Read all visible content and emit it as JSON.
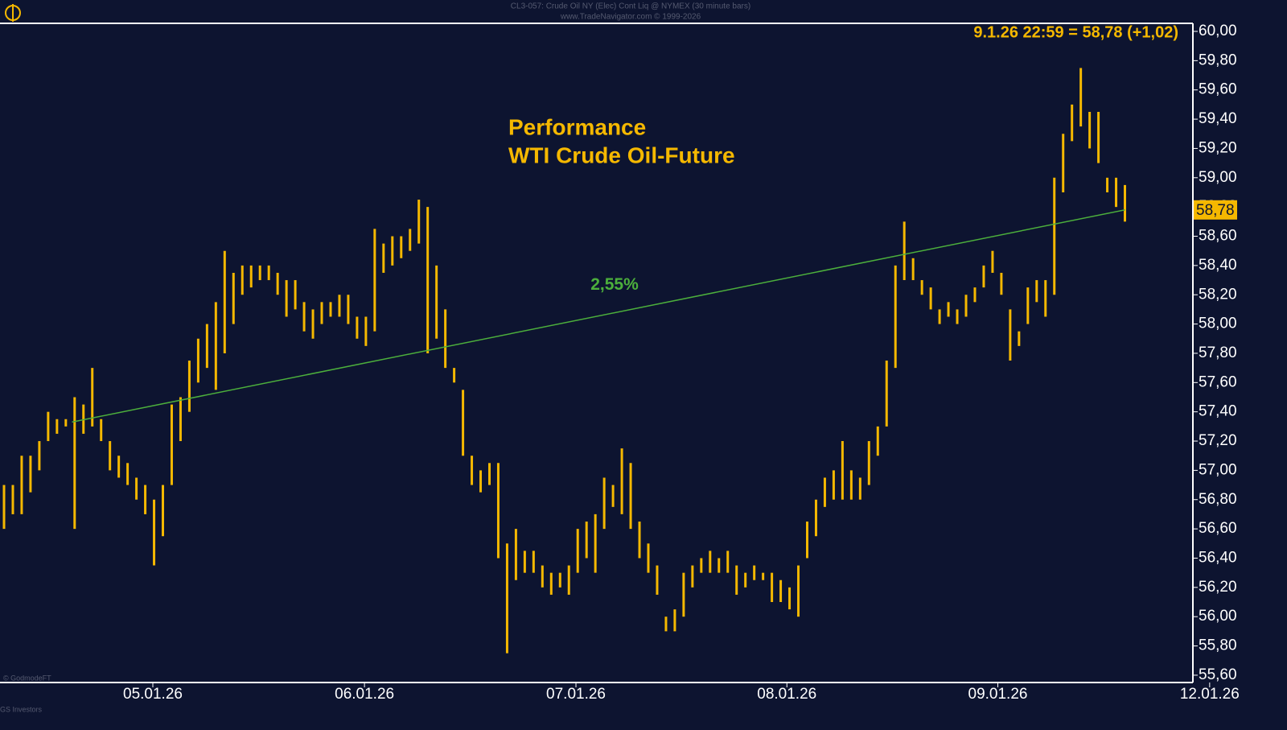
{
  "chart_data": {
    "type": "ohlc",
    "title": "CL3-057: Crude Oil NY (Elec) Cont Liq @ NYMEX (30 minute bars)",
    "subtitle": "www.TradeNavigator.com © 1999-2026",
    "annotation_title": [
      "Performance",
      "WTI Crude Oil-Future"
    ],
    "last_info": "9.1.26 22:59 = 58,78 (+1,02)",
    "last_price": {
      "value": 58.78,
      "label": "58,78"
    },
    "footer": [
      "© GodmodeFT",
      "GS Investors"
    ],
    "color": "#f5b800",
    "series": [
      {
        "high": [
          56.9,
          56.9,
          57.1,
          57.1,
          57.2,
          57.4,
          57.35,
          57.35,
          57.5,
          57.45,
          57.7,
          57.35,
          57.2,
          57.1,
          57.05,
          56.95,
          56.9,
          56.8,
          56.9,
          57.45,
          57.5,
          57.75,
          57.9,
          58.0,
          58.15,
          58.5,
          58.35,
          58.4,
          58.4,
          58.4,
          58.4,
          58.35,
          58.3,
          58.3,
          58.15,
          58.1,
          58.15,
          58.15,
          58.2,
          58.2,
          58.05,
          58.05,
          58.65,
          58.55,
          58.6,
          58.6,
          58.65,
          58.85,
          58.8,
          58.4,
          58.1,
          57.7,
          57.55,
          57.1,
          57.0,
          57.05,
          57.05,
          56.5,
          56.6,
          56.45,
          56.45,
          56.35,
          56.3,
          56.3,
          56.35,
          56.6,
          56.65,
          56.7,
          56.95,
          56.9,
          57.15,
          57.05,
          56.65,
          56.5,
          56.35,
          56.0,
          56.05,
          56.3,
          56.35,
          56.4,
          56.45,
          56.4,
          56.45,
          56.35,
          56.3,
          56.35,
          56.3,
          56.3,
          56.25,
          56.2,
          56.35,
          56.65,
          56.8,
          56.95,
          57.0,
          57.2,
          57.0,
          56.95,
          57.2,
          57.3,
          57.75,
          58.4,
          58.7,
          58.45,
          58.3,
          58.25,
          58.1,
          58.15,
          58.1,
          58.2,
          58.25,
          58.4,
          58.5,
          58.35,
          58.1,
          57.95,
          58.25,
          58.3,
          58.3,
          59.0,
          59.3,
          59.5,
          59.75,
          59.45,
          59.45,
          59.0,
          59.0,
          58.95
        ],
        "low": [
          56.6,
          56.7,
          56.7,
          56.85,
          57.0,
          57.2,
          57.25,
          57.3,
          56.6,
          57.25,
          57.3,
          57.2,
          57.0,
          56.95,
          56.9,
          56.8,
          56.7,
          56.35,
          56.55,
          56.9,
          57.2,
          57.4,
          57.6,
          57.7,
          57.55,
          57.8,
          58.0,
          58.2,
          58.25,
          58.3,
          58.3,
          58.2,
          58.05,
          58.1,
          57.95,
          57.9,
          58.0,
          58.05,
          58.05,
          58.0,
          57.9,
          57.85,
          57.95,
          58.35,
          58.4,
          58.45,
          58.5,
          58.55,
          57.8,
          57.9,
          57.7,
          57.6,
          57.1,
          56.9,
          56.85,
          56.9,
          56.4,
          55.75,
          56.25,
          56.3,
          56.3,
          56.2,
          56.15,
          56.2,
          56.15,
          56.3,
          56.4,
          56.3,
          56.6,
          56.75,
          56.7,
          56.6,
          56.4,
          56.3,
          56.15,
          55.9,
          55.9,
          56.0,
          56.2,
          56.3,
          56.3,
          56.3,
          56.3,
          56.15,
          56.2,
          56.25,
          56.25,
          56.1,
          56.1,
          56.05,
          56.0,
          56.4,
          56.55,
          56.75,
          56.8,
          56.8,
          56.8,
          56.8,
          56.9,
          57.1,
          57.3,
          57.7,
          58.3,
          58.3,
          58.2,
          58.1,
          58.0,
          58.05,
          58.0,
          58.05,
          58.15,
          58.25,
          58.35,
          58.2,
          57.75,
          57.85,
          58.0,
          58.15,
          58.05,
          58.2,
          58.9,
          59.25,
          59.35,
          59.2,
          59.1,
          58.9,
          58.8,
          58.7
        ]
      }
    ],
    "trendline": {
      "x": [
        7.7,
        127
      ],
      "y": [
        57.33,
        58.78
      ],
      "label": "2,55%",
      "color": "#4caf3c"
    },
    "xlim": [
      -0.456,
      134.7
    ],
    "xticks": [
      {
        "value": 16.86,
        "label": "05.01.26"
      },
      {
        "value": 40.84,
        "label": "06.01.26"
      },
      {
        "value": 64.8,
        "label": "07.01.26"
      },
      {
        "value": 88.7,
        "label": "08.01.26"
      },
      {
        "value": 112.6,
        "label": "09.01.26"
      },
      {
        "value": 136.6,
        "label": "12.01.26"
      }
    ],
    "ylim": [
      55.55,
      60.055
    ],
    "yticks": [
      {
        "value": 55.6,
        "label": "55,60"
      },
      {
        "value": 55.8,
        "label": "55,80"
      },
      {
        "value": 56.0,
        "label": "56,00"
      },
      {
        "value": 56.2,
        "label": "56,20"
      },
      {
        "value": 56.4,
        "label": "56,40"
      },
      {
        "value": 56.6,
        "label": "56,60"
      },
      {
        "value": 56.8,
        "label": "56,80"
      },
      {
        "value": 57.0,
        "label": "57,00"
      },
      {
        "value": 57.2,
        "label": "57,20"
      },
      {
        "value": 57.4,
        "label": "57,40"
      },
      {
        "value": 57.6,
        "label": "57,60"
      },
      {
        "value": 57.8,
        "label": "57,80"
      },
      {
        "value": 58.0,
        "label": "58,00"
      },
      {
        "value": 58.2,
        "label": "58,20"
      },
      {
        "value": 58.4,
        "label": "58,40"
      },
      {
        "value": 58.6,
        "label": "58,60"
      },
      {
        "value": 58.8,
        "label": "58,80"
      },
      {
        "value": 59.0,
        "label": "59,00"
      },
      {
        "value": 59.2,
        "label": "59,20"
      },
      {
        "value": 59.4,
        "label": "59,40"
      },
      {
        "value": 59.6,
        "label": "59,60"
      },
      {
        "value": 59.8,
        "label": "59,80"
      },
      {
        "value": 60.0,
        "label": "60,00"
      }
    ]
  }
}
